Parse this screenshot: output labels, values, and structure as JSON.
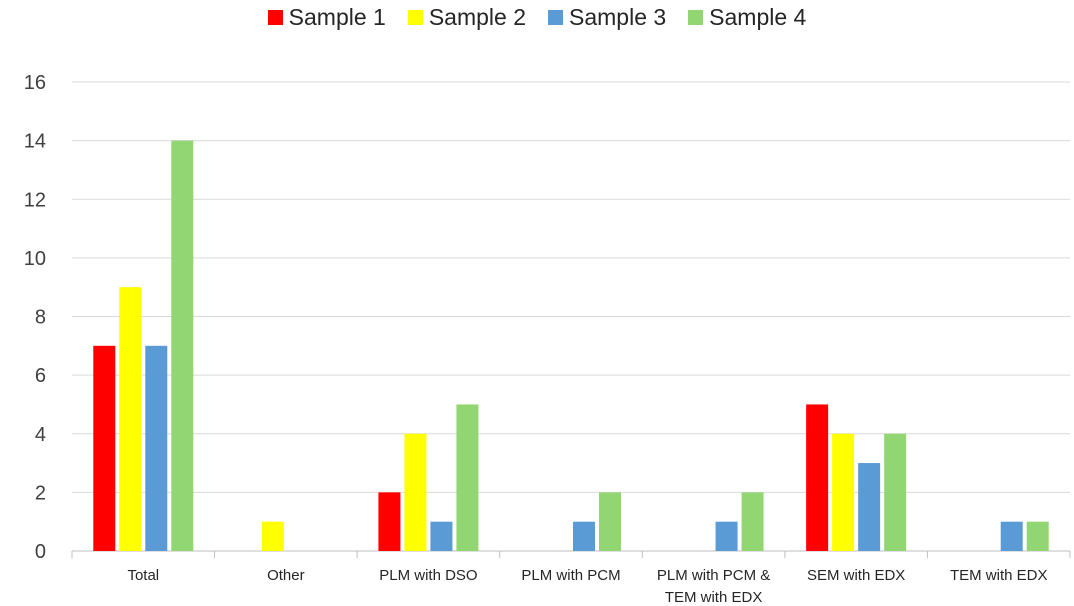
{
  "chart_data": {
    "type": "bar",
    "title": "",
    "xlabel": "",
    "ylabel": "",
    "categories": [
      "Total",
      "Other",
      "PLM with DSO",
      "PLM with PCM",
      "PLM with PCM & TEM with EDX",
      "SEM with EDX",
      "TEM with EDX"
    ],
    "category_lines": [
      [
        "Total"
      ],
      [
        "Other"
      ],
      [
        "PLM with DSO"
      ],
      [
        "PLM with PCM"
      ],
      [
        "PLM with PCM &",
        "TEM with EDX"
      ],
      [
        "SEM with EDX"
      ],
      [
        "TEM with EDX"
      ]
    ],
    "series": [
      {
        "name": "Sample 1",
        "color": "#ff0000",
        "values": [
          7,
          0,
          2,
          0,
          0,
          5,
          0
        ]
      },
      {
        "name": "Sample 2",
        "color": "#ffff00",
        "values": [
          9,
          1,
          4,
          0,
          0,
          4,
          0
        ]
      },
      {
        "name": "Sample 3",
        "color": "#5b9bd5",
        "values": [
          7,
          0,
          1,
          1,
          1,
          3,
          1
        ]
      },
      {
        "name": "Sample 4",
        "color": "#92d673",
        "values": [
          14,
          0,
          5,
          2,
          2,
          4,
          1
        ]
      }
    ],
    "ylim": [
      0,
      16
    ],
    "yticks": [
      0,
      2,
      4,
      6,
      8,
      10,
      12,
      14,
      16
    ],
    "grid": true,
    "legend_position": "top"
  }
}
